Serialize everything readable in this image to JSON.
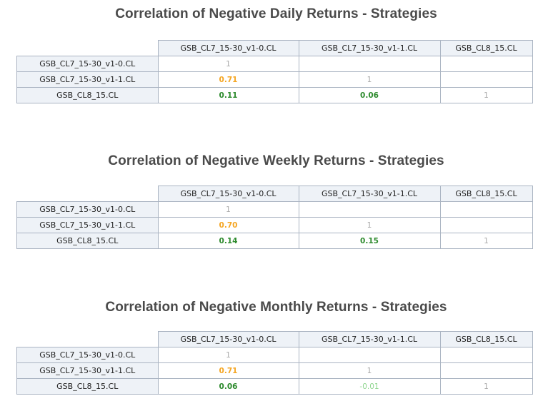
{
  "chart_data": [
    {
      "type": "table",
      "title": "Correlation of Negative Daily Returns - Strategies",
      "columns": [
        "GSB_CL7_15-30_v1-0.CL",
        "GSB_CL7_15-30_v1-1.CL",
        "GSB_CL8_15.CL"
      ],
      "rows": [
        {
          "label": "GSB_CL7_15-30_v1-0.CL",
          "cells": [
            "1",
            "",
            ""
          ]
        },
        {
          "label": "GSB_CL7_15-30_v1-1.CL",
          "cells": [
            "0.71",
            "1",
            ""
          ]
        },
        {
          "label": "GSB_CL8_15.CL",
          "cells": [
            "0.11",
            "0.06",
            "1"
          ]
        }
      ]
    },
    {
      "type": "table",
      "title": "Correlation of Negative Weekly Returns - Strategies",
      "columns": [
        "GSB_CL7_15-30_v1-0.CL",
        "GSB_CL7_15-30_v1-1.CL",
        "GSB_CL8_15.CL"
      ],
      "rows": [
        {
          "label": "GSB_CL7_15-30_v1-0.CL",
          "cells": [
            "1",
            "",
            ""
          ]
        },
        {
          "label": "GSB_CL7_15-30_v1-1.CL",
          "cells": [
            "0.70",
            "1",
            ""
          ]
        },
        {
          "label": "GSB_CL8_15.CL",
          "cells": [
            "0.14",
            "0.15",
            "1"
          ]
        }
      ]
    },
    {
      "type": "table",
      "title": "Correlation of Negative Monthly Returns - Strategies",
      "columns": [
        "GSB_CL7_15-30_v1-0.CL",
        "GSB_CL7_15-30_v1-1.CL",
        "GSB_CL8_15.CL"
      ],
      "rows": [
        {
          "label": "GSB_CL7_15-30_v1-0.CL",
          "cells": [
            "1",
            "",
            ""
          ]
        },
        {
          "label": "GSB_CL7_15-30_v1-1.CL",
          "cells": [
            "0.71",
            "1",
            ""
          ]
        },
        {
          "label": "GSB_CL8_15.CL",
          "cells": [
            "0.06",
            "-0.01",
            "1"
          ]
        }
      ]
    }
  ],
  "colors": {
    "diagonal": "#aaaaaa",
    "high_correlation": "#f5a623",
    "low_correlation": "#2e8b2e",
    "negative_correlation": "#8fd68f",
    "header_background": "#eef2f7",
    "border": "#aab4c2",
    "title": "#4a4a4a"
  }
}
